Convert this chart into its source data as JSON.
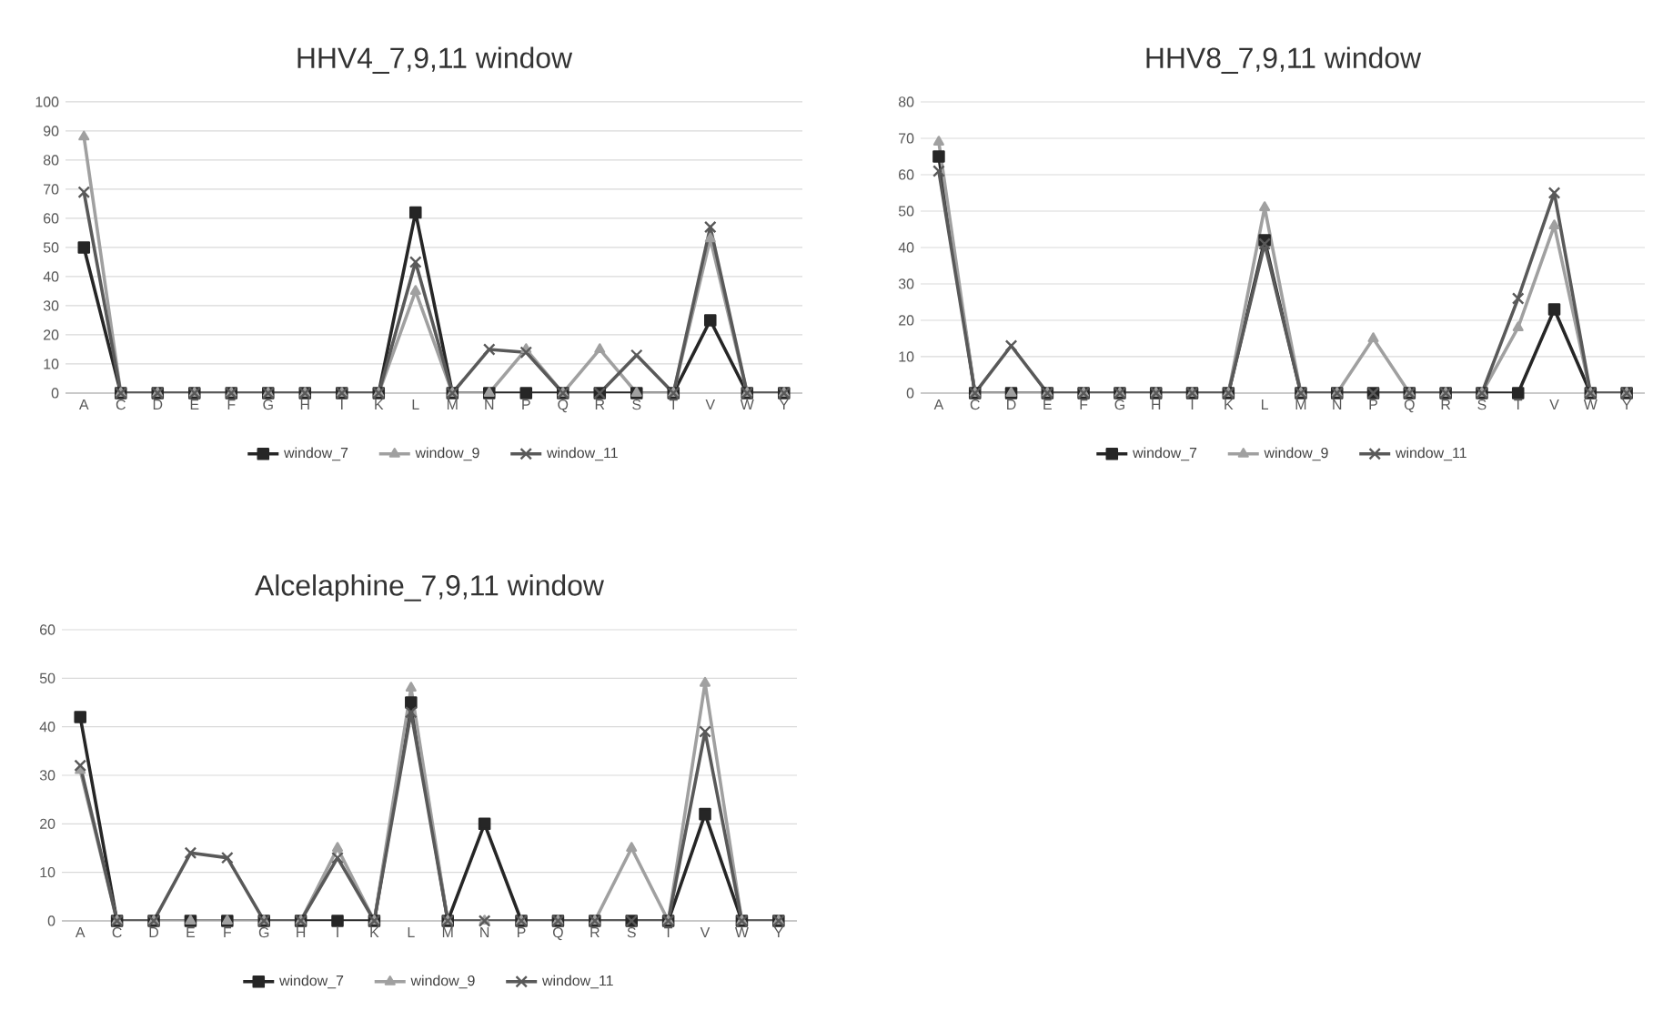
{
  "chart_data": [
    {
      "type": "line",
      "title": "HHV4_7,9,11 window",
      "categories": [
        "A",
        "C",
        "D",
        "E",
        "F",
        "G",
        "H",
        "I",
        "K",
        "L",
        "M",
        "N",
        "P",
        "Q",
        "R",
        "S",
        "T",
        "V",
        "W",
        "Y"
      ],
      "ylim": [
        0,
        100
      ],
      "yticks": [
        0,
        10,
        20,
        30,
        40,
        50,
        60,
        70,
        80,
        90,
        100
      ],
      "grid": "y",
      "legend": "bottom",
      "series": [
        {
          "name": "window_7",
          "color": "#262626",
          "marker": "square",
          "values": [
            50,
            0,
            0,
            0,
            0,
            0,
            0,
            0,
            0,
            62,
            0,
            0,
            0,
            0,
            0,
            0,
            0,
            25,
            0,
            0
          ]
        },
        {
          "name": "window_9",
          "color": "#a0a0a0",
          "marker": "triangle",
          "values": [
            88,
            0,
            0,
            0,
            0,
            0,
            0,
            0,
            0,
            35,
            0,
            0,
            15,
            0,
            15,
            0,
            0,
            53,
            0,
            0
          ]
        },
        {
          "name": "window_11",
          "color": "#595959",
          "marker": "cross",
          "values": [
            69,
            0,
            0,
            0,
            0,
            0,
            0,
            0,
            0,
            45,
            0,
            15,
            14,
            0,
            0,
            13,
            0,
            57,
            0,
            0
          ]
        }
      ]
    },
    {
      "type": "line",
      "title": "HHV8_7,9,11 window",
      "categories": [
        "A",
        "C",
        "D",
        "E",
        "F",
        "G",
        "H",
        "I",
        "K",
        "L",
        "M",
        "N",
        "P",
        "Q",
        "R",
        "S",
        "T",
        "V",
        "W",
        "Y"
      ],
      "ylim": [
        0,
        80
      ],
      "yticks": [
        0,
        10,
        20,
        30,
        40,
        50,
        60,
        70,
        80
      ],
      "grid": "y",
      "legend": "bottom",
      "series": [
        {
          "name": "window_7",
          "color": "#262626",
          "marker": "square",
          "values": [
            65,
            0,
            0,
            0,
            0,
            0,
            0,
            0,
            0,
            42,
            0,
            0,
            0,
            0,
            0,
            0,
            0,
            23,
            0,
            0
          ]
        },
        {
          "name": "window_9",
          "color": "#a0a0a0",
          "marker": "triangle",
          "values": [
            69,
            0,
            0,
            0,
            0,
            0,
            0,
            0,
            0,
            51,
            0,
            0,
            15,
            0,
            0,
            0,
            18,
            46,
            0,
            0
          ]
        },
        {
          "name": "window_11",
          "color": "#595959",
          "marker": "cross",
          "values": [
            61,
            0,
            13,
            0,
            0,
            0,
            0,
            0,
            0,
            41,
            0,
            0,
            0,
            0,
            0,
            0,
            26,
            55,
            0,
            0
          ]
        }
      ]
    },
    {
      "type": "line",
      "title": "Alcelaphine_7,9,11 window",
      "categories": [
        "A",
        "C",
        "D",
        "E",
        "F",
        "G",
        "H",
        "I",
        "K",
        "L",
        "M",
        "N",
        "P",
        "Q",
        "R",
        "S",
        "T",
        "V",
        "W",
        "Y"
      ],
      "ylim": [
        0,
        60
      ],
      "yticks": [
        0,
        10,
        20,
        30,
        40,
        50,
        60
      ],
      "grid": "y",
      "legend": "bottom",
      "series": [
        {
          "name": "window_7",
          "color": "#262626",
          "marker": "square",
          "values": [
            42,
            0,
            0,
            0,
            0,
            0,
            0,
            0,
            0,
            45,
            0,
            20,
            0,
            0,
            0,
            0,
            0,
            22,
            0,
            0
          ]
        },
        {
          "name": "window_9",
          "color": "#a0a0a0",
          "marker": "triangle",
          "values": [
            31,
            0,
            0,
            0,
            0,
            0,
            0,
            15,
            0,
            48,
            0,
            0,
            0,
            0,
            0,
            15,
            0,
            49,
            0,
            0
          ]
        },
        {
          "name": "window_11",
          "color": "#595959",
          "marker": "cross",
          "values": [
            32,
            0,
            0,
            14,
            13,
            0,
            0,
            13,
            0,
            43,
            0,
            0,
            0,
            0,
            0,
            0,
            0,
            39,
            0,
            0
          ]
        }
      ]
    }
  ]
}
